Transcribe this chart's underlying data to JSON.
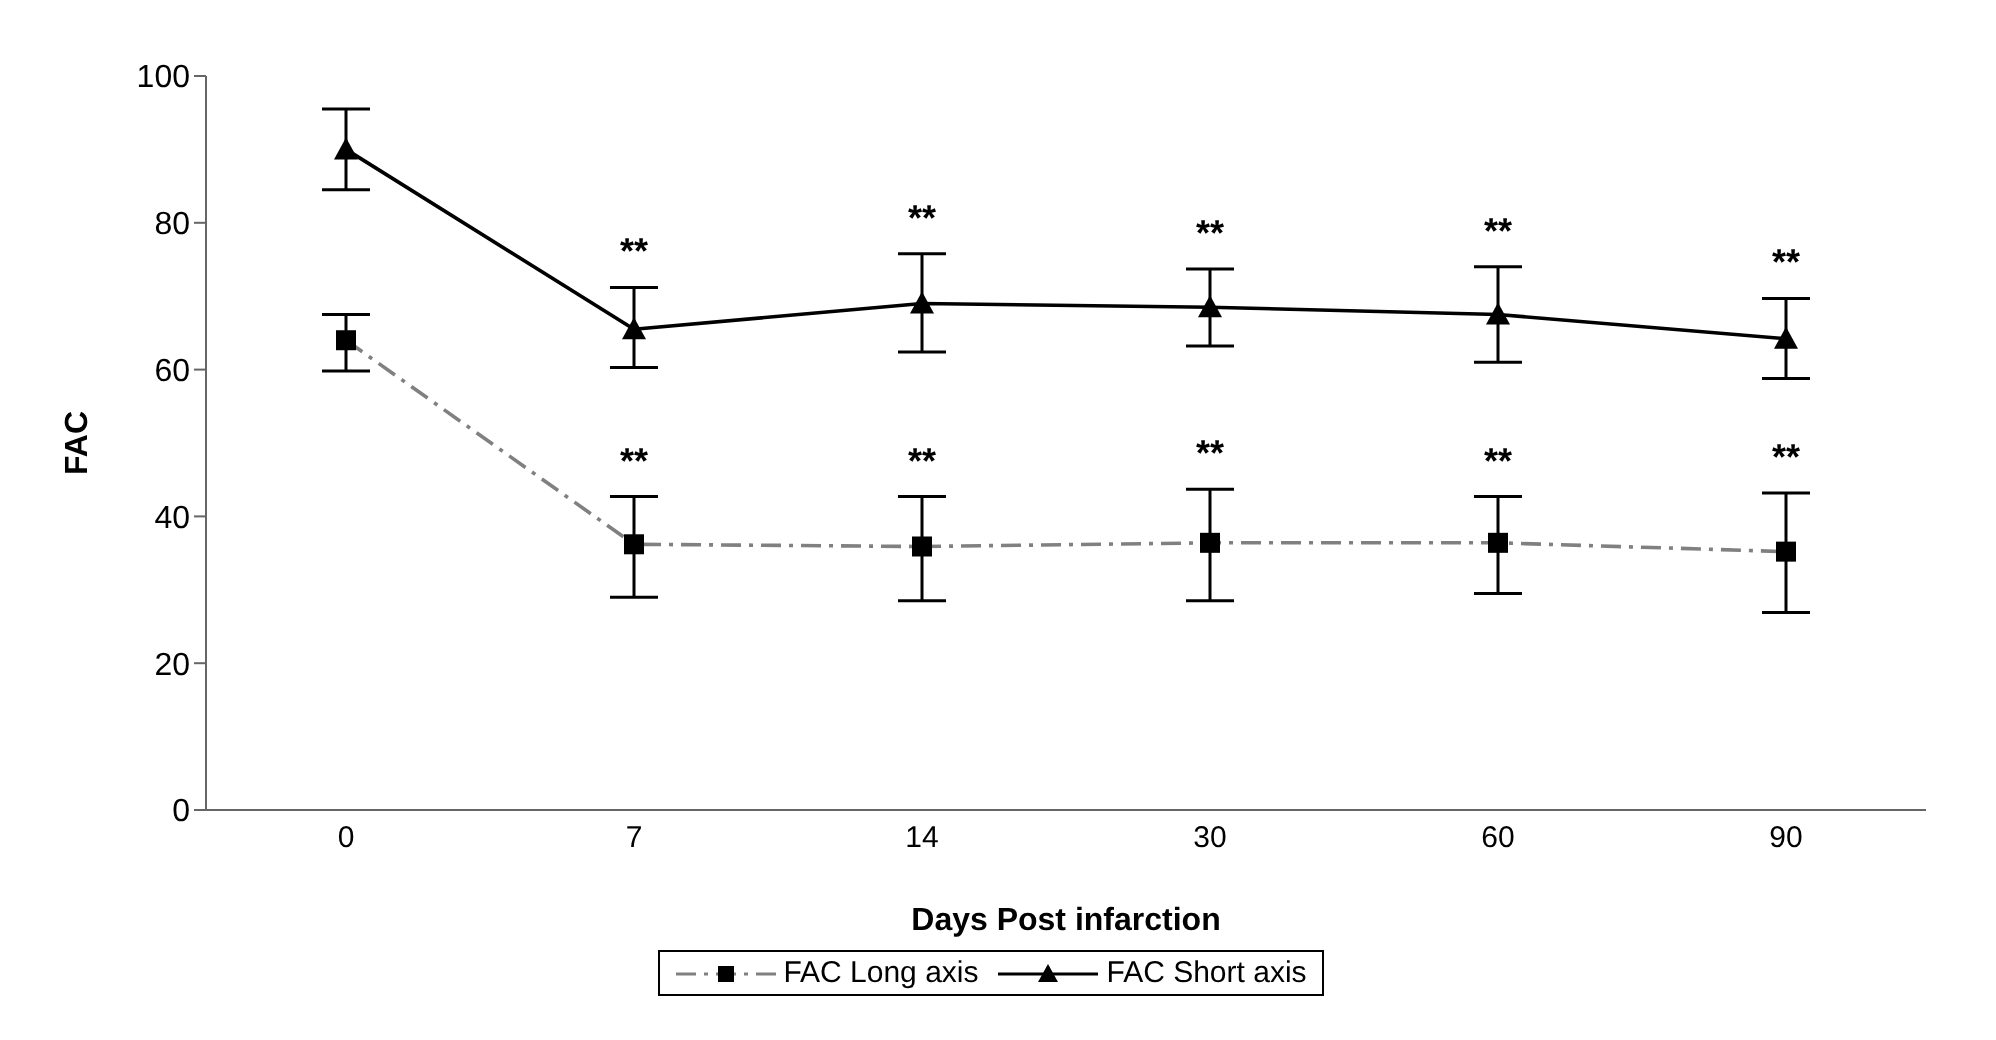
{
  "chart_data": {
    "type": "line",
    "xlabel": "Days Post infarction",
    "ylabel": "FAC",
    "categories": [
      "0",
      "7",
      "14",
      "30",
      "60",
      "90"
    ],
    "series": [
      {
        "name": "FAC Long axis",
        "color": "#808080",
        "marker": "square",
        "line_style": "dashed",
        "values": [
          64,
          36.2,
          35.9,
          36.4,
          36.4,
          35.2
        ],
        "errors": [
          [
            59.8,
            67.5
          ],
          [
            29,
            42.7
          ],
          [
            28.5,
            42.7
          ],
          [
            28.5,
            43.7
          ],
          [
            29.5,
            42.7
          ],
          [
            26.9,
            43.2
          ]
        ]
      },
      {
        "name": "FAC Short axis",
        "color": "#000000",
        "marker": "triangle",
        "line_style": "solid",
        "values": [
          90,
          65.5,
          69,
          68.5,
          67.5,
          64.2
        ],
        "errors": [
          [
            84.5,
            95.5
          ],
          [
            60.3,
            71.2
          ],
          [
            62.4,
            75.8
          ],
          [
            63.2,
            73.7
          ],
          [
            61,
            74
          ],
          [
            58.8,
            69.7
          ]
        ]
      }
    ],
    "ylim": [
      0,
      100
    ],
    "yticks": [
      0,
      20,
      40,
      60,
      80,
      100
    ],
    "grid": false,
    "legend": "bottom",
    "annotations": [
      "**",
      "**",
      "**",
      "**",
      "**",
      "**",
      "**",
      "**",
      "**",
      "**"
    ]
  }
}
